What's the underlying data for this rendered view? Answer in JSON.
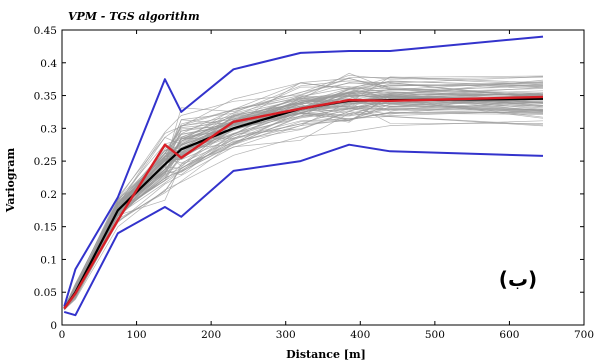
{
  "chart_data": {
    "type": "line",
    "title": "VPM - TGS algorithm",
    "xlabel": "Distance [m]",
    "ylabel": "Variogram",
    "xlim": [
      0,
      700
    ],
    "ylim": [
      0,
      0.45
    ],
    "xticks": [
      0,
      100,
      200,
      300,
      400,
      500,
      600,
      700
    ],
    "yticks": [
      0,
      0.05,
      0.1,
      0.15,
      0.2,
      0.25,
      0.3,
      0.35,
      0.4,
      0.45
    ],
    "xtick_labels": [
      "0",
      "100",
      "200",
      "300",
      "400",
      "500",
      "600",
      "700"
    ],
    "ytick_labels": [
      "0",
      "0.05",
      "0.1",
      "0.15",
      "0.2",
      "0.25",
      "0.3",
      "0.35",
      "0.4",
      "0.45"
    ],
    "grid": false,
    "panel_label": "(ب)",
    "lag_distances": [
      3,
      18,
      75,
      138,
      160,
      230,
      320,
      385,
      440,
      645
    ],
    "series": [
      {
        "color": "#3333cc",
        "values": [
          0.028,
          0.085,
          0.195,
          0.375,
          0.325,
          0.39,
          0.415,
          0.418,
          0.418,
          0.44
        ]
      },
      {
        "color": "#3333cc",
        "values": [
          0.02,
          0.015,
          0.14,
          0.18,
          0.165,
          0.235,
          0.25,
          0.275,
          0.265,
          0.258
        ]
      },
      {
        "color": "#000000",
        "values": [
          0.025,
          0.05,
          0.175,
          0.245,
          0.268,
          0.3,
          0.33,
          0.342,
          0.343,
          0.345
        ]
      },
      {
        "color": "#d81f26",
        "values": [
          0.025,
          0.048,
          0.16,
          0.275,
          0.255,
          0.31,
          0.33,
          0.343,
          0.342,
          0.348
        ]
      }
    ],
    "realizations": {
      "color": "#9a9a9a",
      "count": 80,
      "spread": [
        0.002,
        0.012,
        0.02,
        0.05,
        0.055,
        0.038,
        0.04,
        0.04,
        0.04,
        0.042
      ]
    }
  }
}
